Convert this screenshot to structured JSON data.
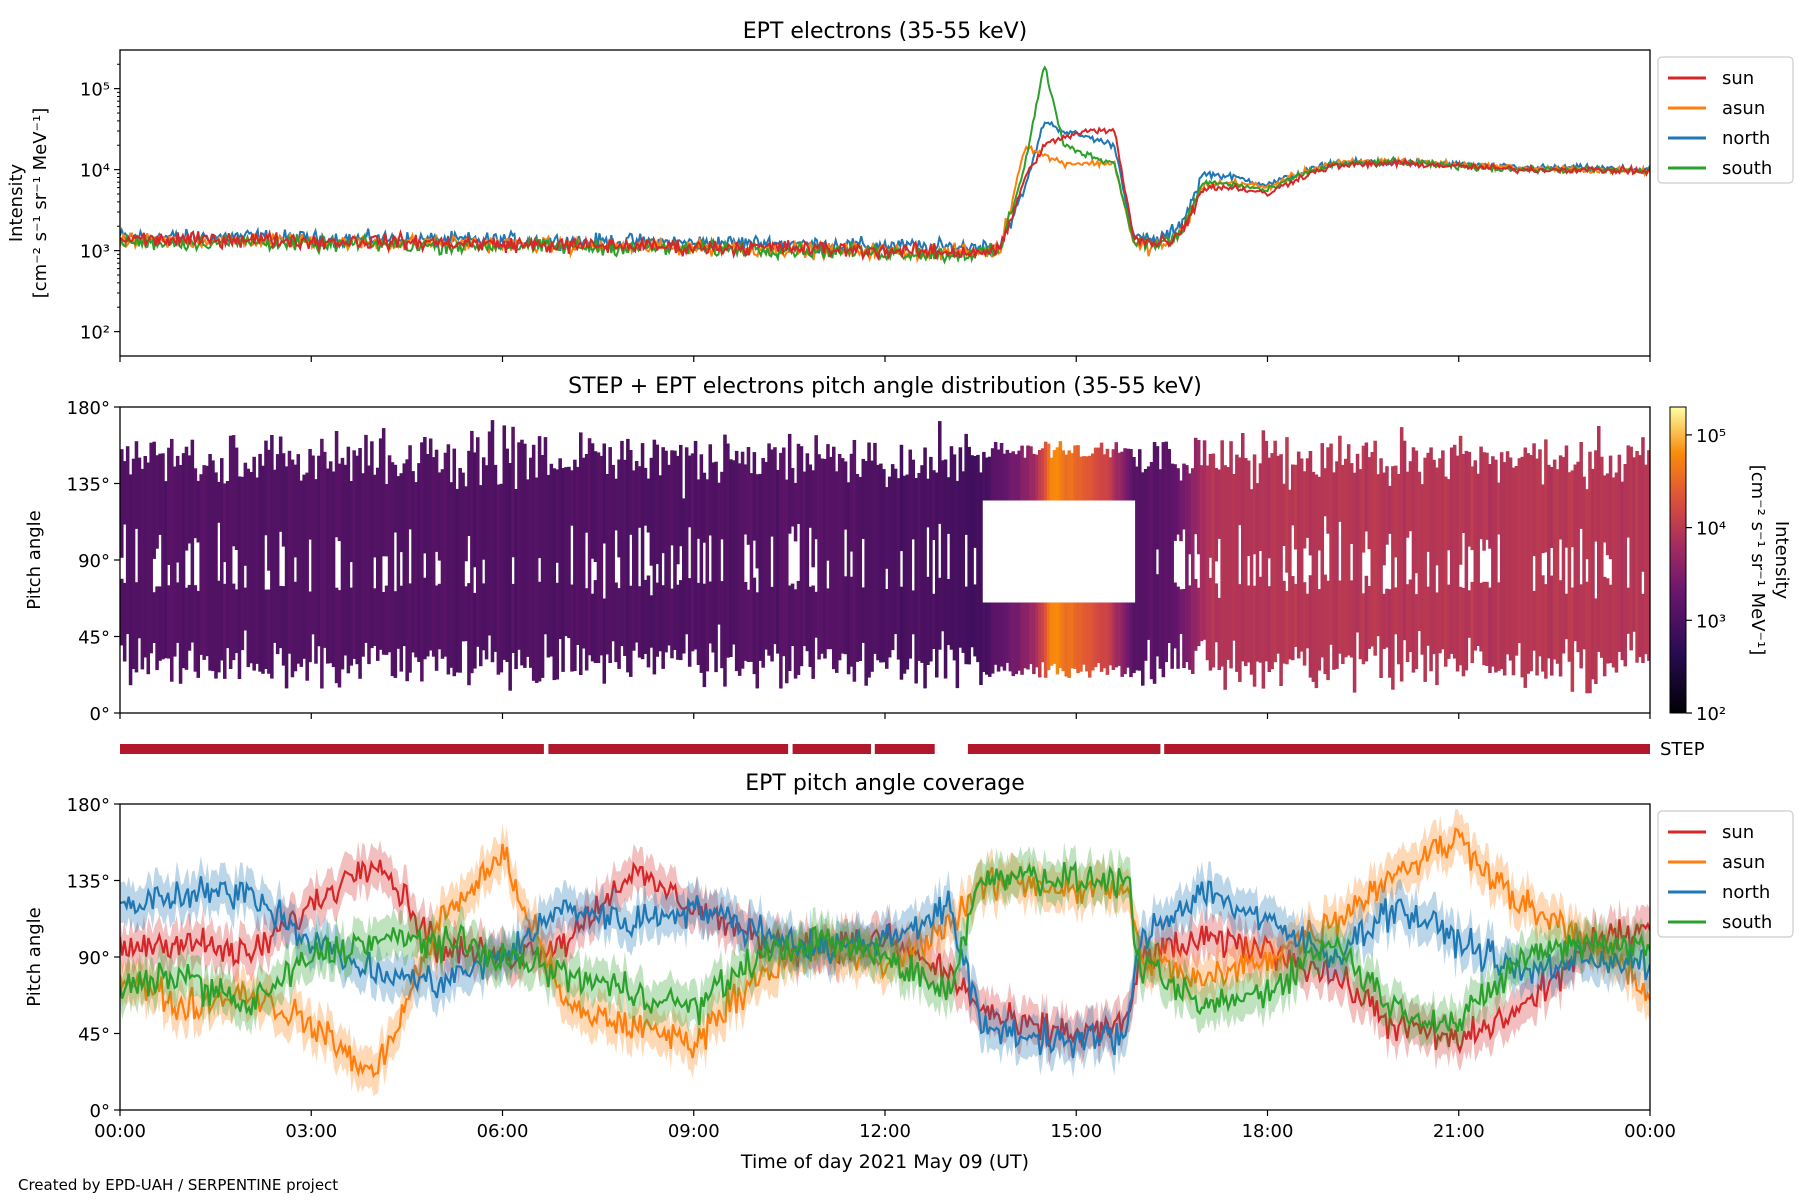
{
  "footer": "Created by EPD-UAH / SERPENTINE project",
  "xaxis": {
    "label": "Time of day 2021 May 09 (UT)",
    "range_hours": [
      0,
      24
    ],
    "ticks": [
      0,
      3,
      6,
      9,
      12,
      15,
      18,
      21,
      24
    ],
    "tick_labels": [
      "00:00",
      "03:00",
      "06:00",
      "09:00",
      "12:00",
      "15:00",
      "18:00",
      "21:00",
      "00:00"
    ]
  },
  "colors": {
    "sun": "#d62728",
    "asun": "#ff7f0e",
    "north": "#1f77b4",
    "south": "#2ca02c",
    "step": "#b2182b"
  },
  "chart_data": [
    {
      "type": "line",
      "title": "EPT electrons (35-55 keV)",
      "ylabel": "Intensity",
      "yunit": "[cm⁻² s⁻¹ sr⁻¹ MeV⁻¹]",
      "yscale": "log",
      "ylim": [
        50,
        300000
      ],
      "ytick_labels": [
        "10²",
        "10³",
        "10⁴",
        "10⁵"
      ],
      "ytick_values": [
        100,
        1000,
        10000,
        100000
      ],
      "legend": "top-right",
      "x": [
        0,
        1,
        2,
        3,
        4,
        5,
        6,
        7,
        8,
        9,
        10,
        11,
        12,
        13,
        13.8,
        14.2,
        14.5,
        14.8,
        15.2,
        15.6,
        15.9,
        16.2,
        16.6,
        17,
        17.5,
        18,
        18.5,
        19,
        20,
        21,
        22,
        23,
        24
      ],
      "series": [
        {
          "name": "sun",
          "values": [
            1400,
            1350,
            1400,
            1300,
            1300,
            1250,
            1200,
            1150,
            1150,
            1100,
            1100,
            1050,
            1000,
            950,
            1000,
            8000,
            20000,
            25000,
            30000,
            30000,
            1500,
            1200,
            1500,
            6000,
            6000,
            5000,
            8000,
            11000,
            12000,
            11000,
            10000,
            10000,
            9500
          ]
        },
        {
          "name": "asun",
          "values": [
            1300,
            1300,
            1350,
            1300,
            1250,
            1250,
            1200,
            1150,
            1100,
            1100,
            1050,
            1000,
            1000,
            950,
            1000,
            20000,
            15000,
            12000,
            12000,
            12000,
            1200,
            1100,
            1400,
            6500,
            7000,
            6000,
            9000,
            12000,
            13000,
            11500,
            10500,
            10000,
            9500
          ]
        },
        {
          "name": "north",
          "values": [
            1500,
            1450,
            1500,
            1400,
            1400,
            1350,
            1350,
            1300,
            1300,
            1250,
            1250,
            1200,
            1150,
            1100,
            1150,
            6000,
            40000,
            30000,
            25000,
            20000,
            1500,
            1300,
            1800,
            9000,
            8000,
            6500,
            9000,
            12000,
            12500,
            11500,
            10500,
            10500,
            10000
          ]
        },
        {
          "name": "south",
          "values": [
            1300,
            1250,
            1300,
            1200,
            1200,
            1150,
            1150,
            1100,
            1100,
            1050,
            1050,
            1000,
            950,
            900,
            950,
            12000,
            200000,
            20000,
            15000,
            12000,
            1300,
            1200,
            1400,
            7000,
            6500,
            5500,
            8500,
            11500,
            12500,
            11000,
            10000,
            10000,
            9500
          ]
        }
      ]
    },
    {
      "type": "heatmap",
      "title": "STEP + EPT electrons pitch angle distribution (35-55 keV)",
      "ylabel": "Pitch angle",
      "ylim": [
        0,
        180
      ],
      "ytick_labels": [
        "0°",
        "45°",
        "90°",
        "135°",
        "180°"
      ],
      "ytick_values": [
        0,
        45,
        90,
        135,
        180
      ],
      "colorbar": {
        "label": "Intensity",
        "unit": "[cm⁻² s⁻¹ sr⁻¹ MeV⁻¹]",
        "scale": "log",
        "range": [
          100,
          200000
        ],
        "tick_labels": [
          "10²",
          "10³",
          "10⁴",
          "10⁵"
        ],
        "tick_values": [
          100,
          1000,
          10000,
          100000
        ]
      },
      "intensity_profile": {
        "x": [
          0,
          3,
          6,
          9,
          11,
          13.5,
          14.3,
          14.6,
          15.5,
          15.9,
          16.5,
          17,
          18,
          21,
          24
        ],
        "values": [
          1200,
          1200,
          1150,
          1100,
          1300,
          800,
          5000,
          60000,
          12000,
          1200,
          1500,
          8000,
          9000,
          9500,
          9000
        ]
      }
    },
    {
      "type": "line",
      "title": "EPT pitch angle coverage",
      "ylabel": "Pitch angle",
      "ylim": [
        0,
        180
      ],
      "ytick_labels": [
        "0°",
        "45°",
        "90°",
        "135°",
        "180°"
      ],
      "ytick_values": [
        0,
        45,
        90,
        135,
        180
      ],
      "legend": "top-right",
      "x": [
        0,
        1,
        2,
        3,
        4,
        5,
        6,
        7,
        8,
        9,
        10,
        11,
        12,
        13,
        13.5,
        14,
        15,
        15.8,
        16,
        17,
        18,
        19,
        20,
        21,
        22,
        23,
        24
      ],
      "series": [
        {
          "name": "sun",
          "values": [
            95,
            100,
            90,
            120,
            150,
            95,
            90,
            100,
            140,
            120,
            100,
            95,
            100,
            80,
            60,
            50,
            45,
            50,
            90,
            100,
            95,
            80,
            50,
            40,
            60,
            95,
            110
          ]
        },
        {
          "name": "asun",
          "values": [
            80,
            60,
            70,
            50,
            20,
            110,
            150,
            60,
            50,
            40,
            80,
            95,
            85,
            110,
            130,
            135,
            130,
            130,
            90,
            75,
            90,
            110,
            140,
            160,
            120,
            100,
            70
          ]
        },
        {
          "name": "north",
          "values": [
            120,
            125,
            130,
            100,
            80,
            75,
            90,
            120,
            110,
            120,
            105,
            95,
            100,
            120,
            50,
            45,
            40,
            45,
            100,
            130,
            110,
            90,
            120,
            100,
            80,
            90,
            85
          ]
        },
        {
          "name": "south",
          "values": [
            70,
            80,
            60,
            90,
            100,
            100,
            90,
            80,
            70,
            60,
            90,
            100,
            90,
            70,
            135,
            140,
            135,
            135,
            85,
            60,
            70,
            100,
            60,
            50,
            90,
            100,
            95
          ]
        }
      ],
      "band_halfwidth_deg": 12
    }
  ],
  "step_coverage": {
    "label": "STEP",
    "segments": [
      [
        0,
        6.65
      ],
      [
        6.72,
        10.48
      ],
      [
        10.55,
        11.78
      ],
      [
        11.84,
        12.78
      ],
      [
        13.3,
        16.32
      ],
      [
        16.38,
        24
      ]
    ]
  }
}
